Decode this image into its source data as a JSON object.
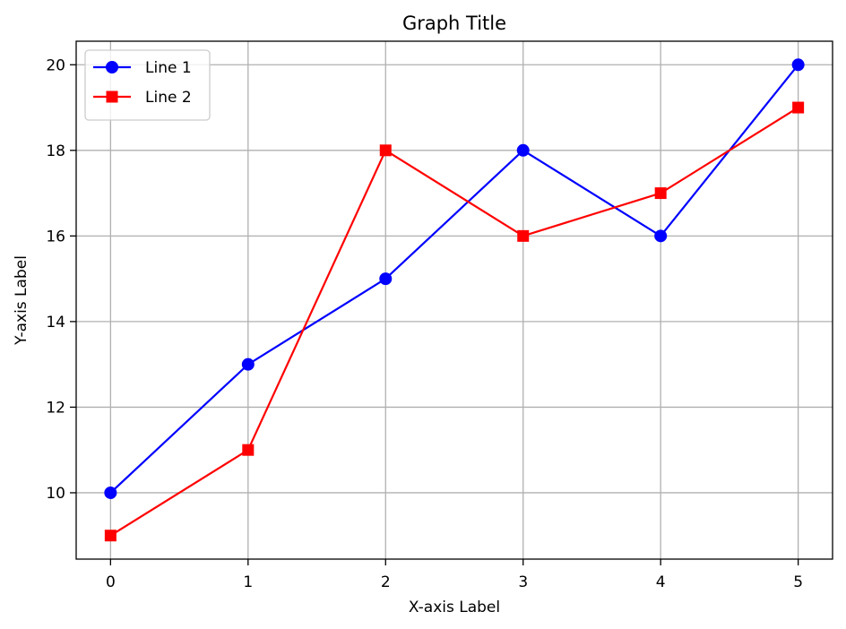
{
  "chart_data": {
    "type": "line",
    "title": "Graph Title",
    "xlabel": "X-axis Label",
    "ylabel": "Y-axis Label",
    "x": [
      0,
      1,
      2,
      3,
      4,
      5
    ],
    "xticks": [
      0,
      1,
      2,
      3,
      4,
      5
    ],
    "yticks": [
      10,
      12,
      14,
      16,
      18,
      20
    ],
    "xlim": [
      -0.25,
      5.25
    ],
    "ylim": [
      8.45,
      20.55
    ],
    "grid": true,
    "legend": "top-left",
    "series": [
      {
        "name": "Line 1",
        "color": "#0000ff",
        "marker": "circle",
        "values": [
          10,
          13,
          15,
          18,
          16,
          20
        ]
      },
      {
        "name": "Line 2",
        "color": "#ff0000",
        "marker": "square",
        "values": [
          9,
          11,
          18,
          16,
          17,
          19
        ]
      }
    ]
  }
}
